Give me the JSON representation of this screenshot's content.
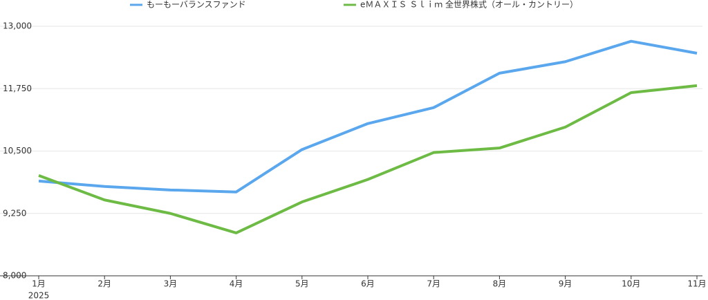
{
  "chart_data": {
    "type": "line",
    "categories": [
      "1月",
      "2月",
      "3月",
      "4月",
      "5月",
      "6月",
      "7月",
      "8月",
      "9月",
      "10月",
      "11月"
    ],
    "year_label": "2025",
    "series": [
      {
        "name": "もーもーバランスファンド",
        "color": "#5aa7ee",
        "values": [
          9900,
          9790,
          9720,
          9680,
          10530,
          11050,
          11370,
          12060,
          12290,
          12700,
          12460
        ]
      },
      {
        "name": "eＭＡＸＩＳ Ｓｌｉｍ 全世界株式（オール・カントリー）",
        "color": "#6dbb45",
        "values": [
          10010,
          9520,
          9250,
          8860,
          9480,
          9930,
          10470,
          10560,
          10980,
          11670,
          11810
        ]
      }
    ],
    "ylim": [
      8000,
      13000
    ],
    "yticks": [
      {
        "value": 8000,
        "label": "8,000"
      },
      {
        "value": 9250,
        "label": "9,250"
      },
      {
        "value": 10500,
        "label": "10,500"
      },
      {
        "value": 11750,
        "label": "11,750"
      },
      {
        "value": 13000,
        "label": "13,000"
      }
    ],
    "grid": true
  }
}
